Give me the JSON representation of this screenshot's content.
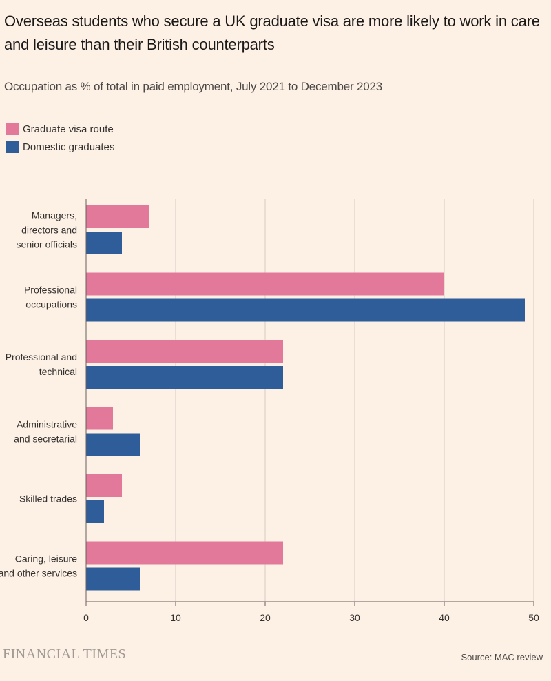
{
  "header": {
    "title": "Overseas students who secure a UK graduate visa are more likely to work in care and leisure than their British counterparts",
    "subtitle": "Occupation as % of total in paid employment, July 2021 to December 2023"
  },
  "legend": [
    {
      "label": "Graduate visa route",
      "color": "#e3799a"
    },
    {
      "label": "Domestic graduates",
      "color": "#2e5d9a"
    }
  ],
  "chart_data": {
    "type": "bar",
    "orientation": "horizontal",
    "categories": [
      [
        "Managers,",
        "directors and",
        "senior officials"
      ],
      [
        "Professional",
        "occupations"
      ],
      [
        "Professional and",
        "technical"
      ],
      [
        "Administrative",
        "and secretarial"
      ],
      [
        "Skilled trades"
      ],
      [
        "Caring, leisure",
        "and other services"
      ]
    ],
    "series": [
      {
        "name": "Graduate visa route",
        "color": "#e3799a",
        "values": [
          7,
          40,
          22,
          3,
          4,
          22
        ]
      },
      {
        "name": "Domestic graduates",
        "color": "#2e5d9a",
        "values": [
          4,
          49,
          22,
          6,
          2,
          6
        ]
      }
    ],
    "xlim": [
      0,
      50
    ],
    "xticks": [
      0,
      10,
      20,
      30,
      40,
      50
    ],
    "grid": true
  },
  "footer": {
    "logo": "FINANCIAL TIMES",
    "source": "Source: MAC review"
  }
}
